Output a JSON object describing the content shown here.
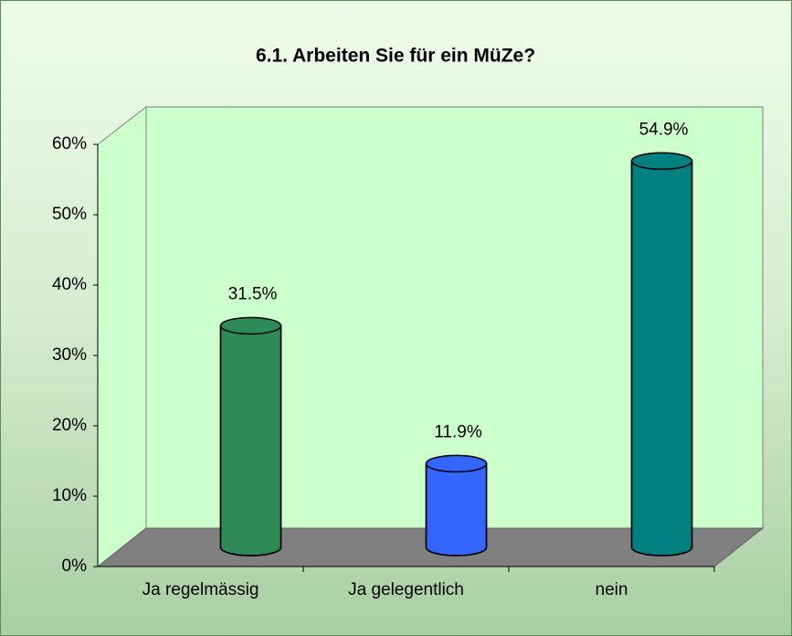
{
  "chart_data": {
    "type": "bar3d",
    "title": "6.1. Arbeiten Sie für ein MüZe?",
    "categories": [
      "Ja regelmässig",
      "Ja gelegentlich",
      "nein"
    ],
    "values": [
      31.5,
      11.9,
      54.9
    ],
    "value_labels": [
      "31.5%",
      "11.9%",
      "54.9%"
    ],
    "colors": [
      "#2e8b57",
      "#3366ff",
      "#008080"
    ],
    "ylim": [
      0,
      60
    ],
    "yticks": [
      {
        "value": 0,
        "label": "0%"
      },
      {
        "value": 10,
        "label": "10%"
      },
      {
        "value": 20,
        "label": "20%"
      },
      {
        "value": 30,
        "label": "30%"
      },
      {
        "value": 40,
        "label": "40%"
      },
      {
        "value": 50,
        "label": "50%"
      },
      {
        "value": 60,
        "label": "60%"
      }
    ]
  }
}
